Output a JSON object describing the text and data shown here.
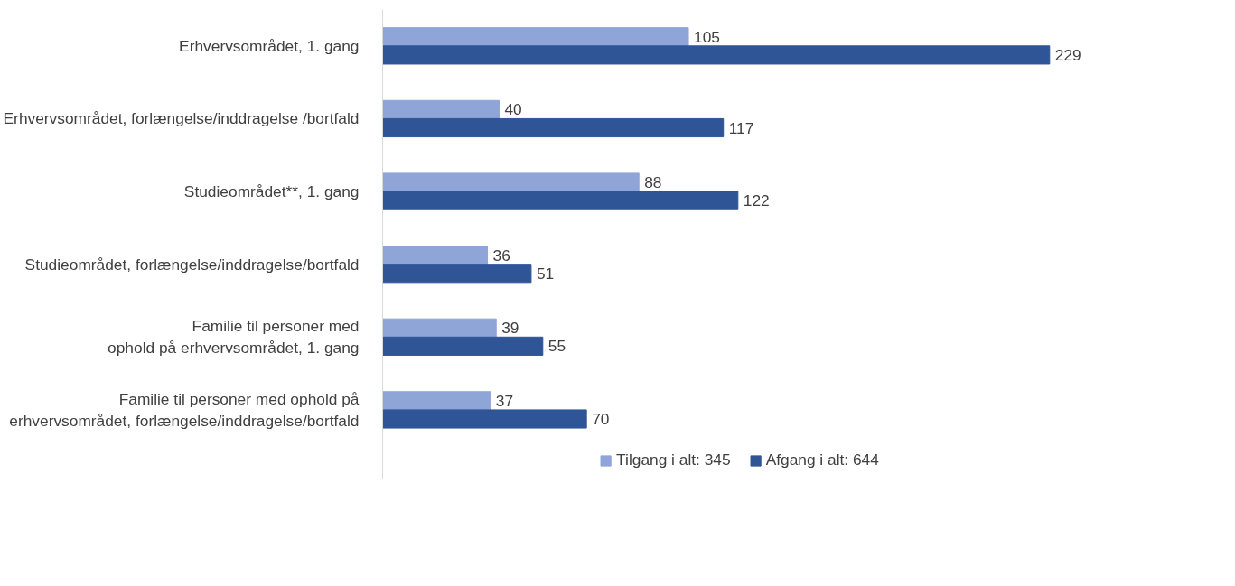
{
  "chart_data": {
    "type": "bar",
    "orientation": "horizontal",
    "data_labels": true,
    "legend": "bottom",
    "grid": false,
    "categories": [
      "Erhvervsområdet, 1. gang",
      "Erhvervsområdet, forlængelse/inddragelse /bortfald",
      "Studieområdet**, 1. gang",
      "Studieområdet, forlængelse/inddragelse/bortfald",
      "Familie til personer med\nophold på erhvervsområdet, 1. gang",
      "Familie til personer med ophold på\nerhvervsområdet, forlængelse/inddragelse/bortfald"
    ],
    "series": [
      {
        "name": "Tilgang i alt: 345",
        "color": "#8fa5d8",
        "values": [
          105,
          40,
          88,
          36,
          39,
          37
        ]
      },
      {
        "name": "Afgang i alt: 644",
        "color": "#2f5597",
        "values": [
          229,
          117,
          122,
          51,
          55,
          70
        ]
      }
    ]
  }
}
